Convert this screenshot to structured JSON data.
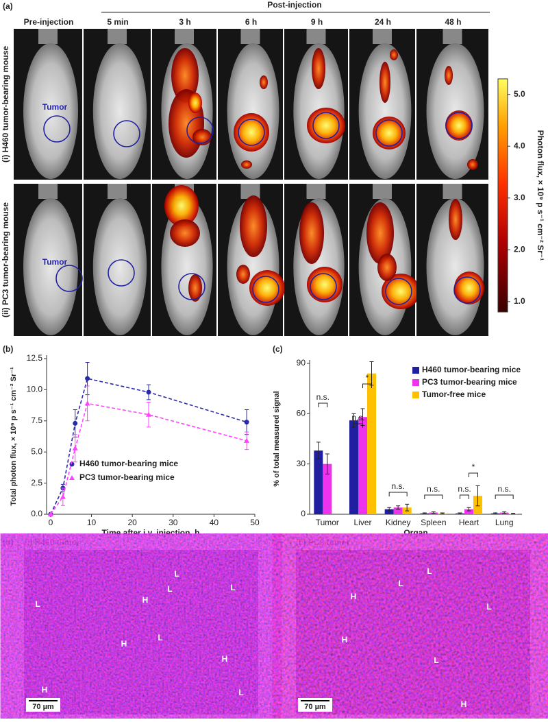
{
  "panel_a": {
    "label": "(a)",
    "header": "Post-injection",
    "columns": [
      "Pre-injection",
      "5 min",
      "3 h",
      "6 h",
      "9 h",
      "24 h",
      "48 h"
    ],
    "rows": [
      "(i) H460 tumor-bearing mouse",
      "(ii) PC3 tumor-bearing mouse"
    ],
    "tumor_labels": [
      "Tumor",
      "Tumor"
    ],
    "colorbar": {
      "label": "Photon flux, × 10⁹ p s⁻¹ cm⁻² Sr⁻¹",
      "lim": [
        0.8,
        5.3
      ],
      "ticks": [
        {
          "value": 1,
          "label": "1.0"
        },
        {
          "value": 2,
          "label": "2.0"
        },
        {
          "value": 3,
          "label": "3.0"
        },
        {
          "value": 4,
          "label": "4.0"
        },
        {
          "value": 5,
          "label": "5.0"
        }
      ]
    }
  },
  "chart_data": [
    {
      "type": "line",
      "panel": "(b)",
      "x_label": "Time after i.v. injection, h",
      "y_label": "Total photon flux, × 10⁹ p s⁻¹ cm⁻² Sr⁻¹",
      "x": [
        0,
        3,
        6,
        9,
        24,
        48
      ],
      "xlim": [
        -1,
        50
      ],
      "xticks": [
        0,
        10,
        20,
        30,
        40,
        50
      ],
      "ylim": [
        0,
        12.5
      ],
      "yticks": [
        {
          "value": 0,
          "label": "0.0"
        },
        {
          "value": 2.5,
          "label": "2.5"
        },
        {
          "value": 5,
          "label": "5.0"
        },
        {
          "value": 7.5,
          "label": "7.5"
        },
        {
          "value": 10,
          "label": "10.0"
        },
        {
          "value": 12.5,
          "label": "12.5"
        }
      ],
      "legend": "lower-left",
      "linestyle": "dashed",
      "series": [
        {
          "name": "H460 tumor-bearing mice",
          "color": "#2a2aa8",
          "marker": "circle",
          "values": [
            0,
            2.1,
            7.3,
            10.9,
            9.8,
            7.4
          ],
          "errors": [
            0,
            0.3,
            1.1,
            1.3,
            0.6,
            1.0
          ]
        },
        {
          "name": "PC3 tumor-bearing mice",
          "color": "#ff44ff",
          "marker": "triangle",
          "values": [
            0,
            1.4,
            5.3,
            8.9,
            8.0,
            5.9
          ],
          "errors": [
            0,
            0.7,
            1.1,
            1.4,
            1.0,
            0.7
          ]
        }
      ]
    },
    {
      "type": "bar",
      "panel": "(c)",
      "x_label": "Organ",
      "y_label": "% of total measured signal",
      "categories": [
        "Tumor",
        "Liver",
        "Kidney",
        "Spleen",
        "Heart",
        "Lung"
      ],
      "ylim": [
        0,
        90
      ],
      "yticks": [
        0,
        30,
        60,
        90
      ],
      "legend": "upper-right",
      "series": [
        {
          "name": "H460 tumor-bearing mice",
          "color": "#1f1fa0",
          "values": [
            38,
            56,
            3,
            0.5,
            0.5,
            0.5
          ],
          "errors": [
            5,
            4,
            1,
            0.3,
            0.3,
            0.3
          ]
        },
        {
          "name": "PC3 tumor-bearing mice",
          "color": "#ee33ee",
          "values": [
            30,
            58,
            4,
            1,
            3,
            1
          ],
          "errors": [
            6,
            5,
            1,
            0.5,
            1,
            0.5
          ]
        },
        {
          "name": "Tumor-free mice",
          "color": "#ffc000",
          "values": [
            null,
            84,
            4,
            0.5,
            11,
            0.3
          ],
          "errors": [
            null,
            7,
            2,
            0.3,
            6,
            0.2
          ]
        }
      ],
      "annotations": [
        "n.s.",
        "n.s.",
        "*",
        "n.s.",
        "n.s.",
        "n.s.",
        "*",
        "n.s."
      ]
    }
  ],
  "panel_d": {
    "label": "(d)",
    "titles": [
      "(i) H460 tumor",
      "(ii) PC3 tumor"
    ],
    "scale_bars": [
      "70 µm",
      "70 µm"
    ],
    "left_marks": [
      "L",
      "L",
      "L",
      "L",
      "L",
      "L",
      "H",
      "H",
      "H",
      "H"
    ],
    "right_marks": [
      "L",
      "L",
      "L",
      "L",
      "H",
      "H",
      "H"
    ]
  }
}
